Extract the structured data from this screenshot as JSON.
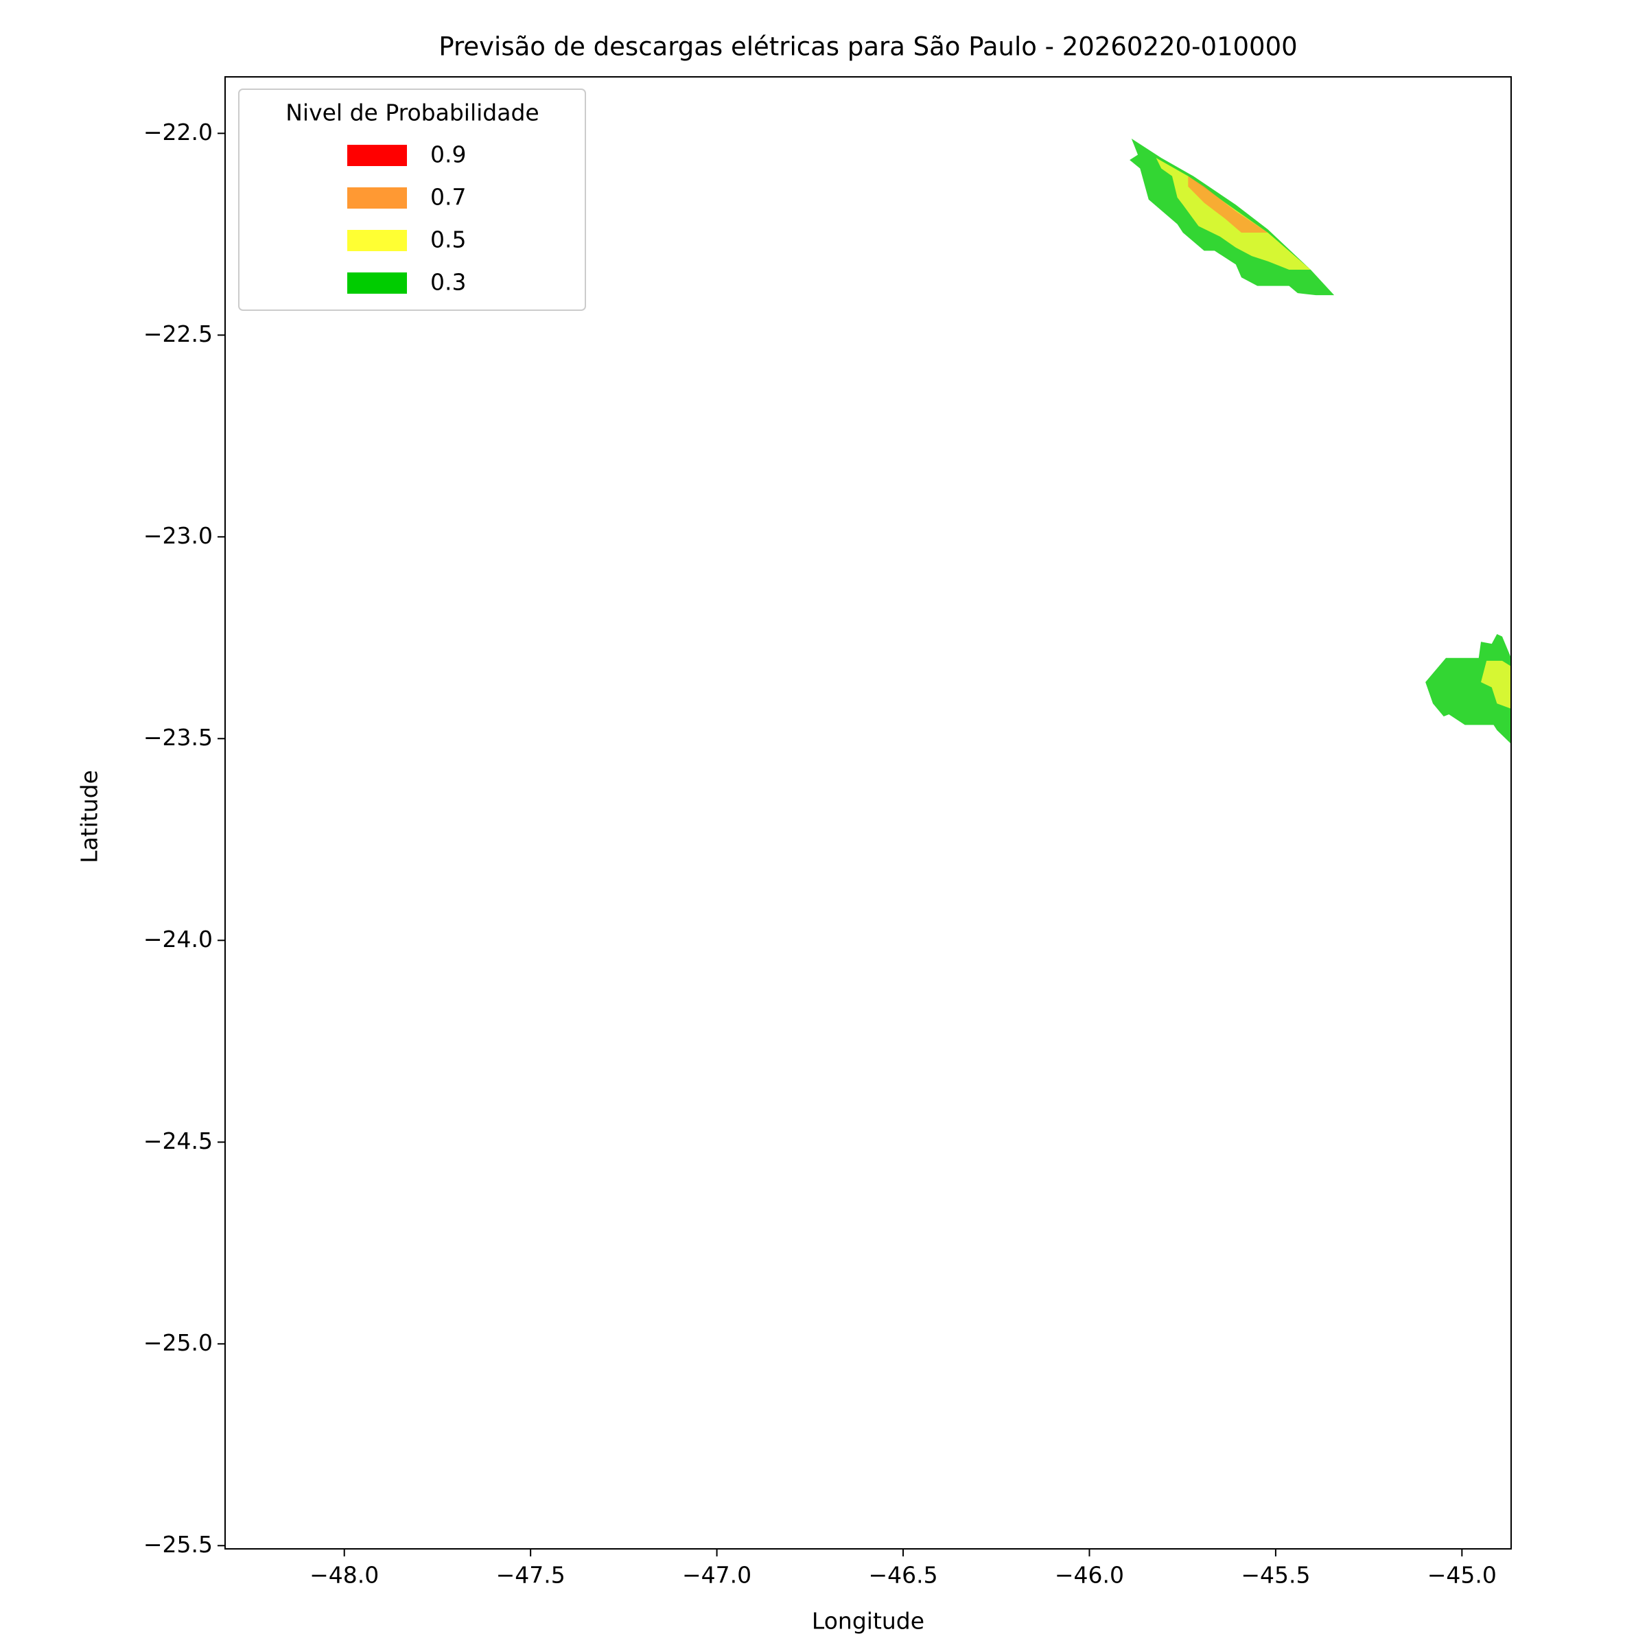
{
  "chart_data": {
    "type": "contourf",
    "title": "Previsão de descargas elétricas para São Paulo - 20260220-010000",
    "xlabel": "Longitude",
    "ylabel": "Latitude",
    "xlim": [
      -48.32,
      -44.868
    ],
    "ylim": [
      -25.508,
      -21.86
    ],
    "xticks": [
      {
        "value": -48.0,
        "label": "−48.0"
      },
      {
        "value": -47.5,
        "label": "−47.5"
      },
      {
        "value": -47.0,
        "label": "−47.0"
      },
      {
        "value": -46.5,
        "label": "−46.5"
      },
      {
        "value": -46.0,
        "label": "−46.0"
      },
      {
        "value": -45.5,
        "label": "−45.5"
      },
      {
        "value": -45.0,
        "label": "−45.0"
      }
    ],
    "yticks": [
      {
        "value": -22.0,
        "label": "−22.0"
      },
      {
        "value": -22.5,
        "label": "−22.5"
      },
      {
        "value": -23.0,
        "label": "−23.0"
      },
      {
        "value": -23.5,
        "label": "−23.5"
      },
      {
        "value": -24.0,
        "label": "−24.0"
      },
      {
        "value": -24.5,
        "label": "−24.5"
      },
      {
        "value": -25.0,
        "label": "−25.0"
      },
      {
        "value": -25.5,
        "label": "−25.5"
      }
    ],
    "legend_title": "Nivel de Probabilidade",
    "legend_loc": "upper left",
    "fill_opacity": 0.8,
    "series": [
      {
        "name": "0.3",
        "color": "#00cc00",
        "regions": [
          {
            "x": [
              -45.887,
              -45.807,
              -45.721,
              -45.607,
              -45.521,
              -45.406,
              -45.343,
              -45.392,
              -45.441,
              -45.464,
              -45.549,
              -45.592,
              -45.607,
              -45.664,
              -45.692,
              -45.749,
              -45.764,
              -45.841,
              -45.864,
              -45.892,
              -45.87
            ],
            "y": [
              -22.013,
              -22.061,
              -22.106,
              -22.177,
              -22.238,
              -22.338,
              -22.401,
              -22.401,
              -22.396,
              -22.378,
              -22.378,
              -22.357,
              -22.325,
              -22.291,
              -22.291,
              -22.246,
              -22.225,
              -22.164,
              -22.087,
              -22.066,
              -22.053
            ]
          },
          {
            "x": [
              -45.098,
              -45.043,
              -44.955,
              -44.949,
              -44.92,
              -44.906,
              -44.892,
              -44.868,
              -44.868,
              -44.906,
              -44.915,
              -44.992,
              -45.035,
              -45.049,
              -45.078
            ],
            "y": [
              -23.36,
              -23.3,
              -23.3,
              -23.26,
              -23.265,
              -23.241,
              -23.247,
              -23.3,
              -23.513,
              -23.479,
              -23.466,
              -23.466,
              -23.44,
              -23.445,
              -23.413
            ]
          }
        ]
      },
      {
        "name": "0.5",
        "color": "#ffff33",
        "regions": [
          {
            "x": [
              -45.821,
              -45.735,
              -45.635,
              -45.521,
              -45.406,
              -45.464,
              -45.521,
              -45.564,
              -45.607,
              -45.649,
              -45.707,
              -45.749,
              -45.764,
              -45.778,
              -45.807
            ],
            "y": [
              -22.061,
              -22.106,
              -22.172,
              -22.246,
              -22.338,
              -22.338,
              -22.317,
              -22.304,
              -22.283,
              -22.256,
              -22.23,
              -22.177,
              -22.159,
              -22.106,
              -22.087
            ]
          },
          {
            "x": [
              -44.934,
              -44.892,
              -44.868,
              -44.868,
              -44.906,
              -44.92,
              -44.949
            ],
            "y": [
              -23.307,
              -23.307,
              -23.321,
              -23.426,
              -23.413,
              -23.373,
              -23.36
            ]
          }
        ]
      },
      {
        "name": "0.7",
        "color": "#ff9933",
        "regions": [
          {
            "x": [
              -45.735,
              -45.692,
              -45.607,
              -45.521,
              -45.592,
              -45.635,
              -45.692,
              -45.735
            ],
            "y": [
              -22.106,
              -22.132,
              -22.193,
              -22.246,
              -22.246,
              -22.212,
              -22.172,
              -22.132
            ]
          }
        ]
      },
      {
        "name": "0.9",
        "color": "#ff0000",
        "regions": []
      }
    ]
  }
}
